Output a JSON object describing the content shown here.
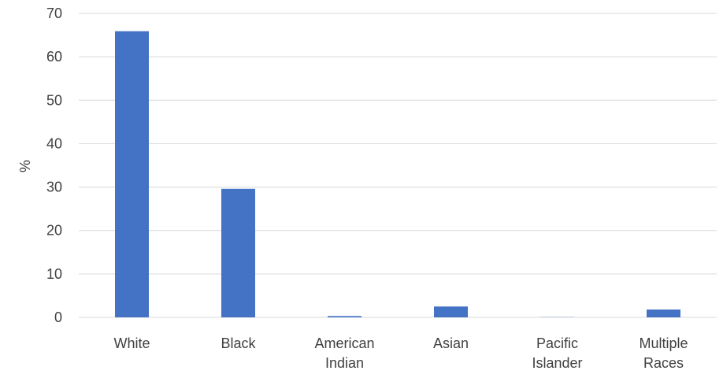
{
  "chart_data": {
    "type": "bar",
    "title": "",
    "xlabel": "",
    "ylabel": "%",
    "categories": [
      [
        "White"
      ],
      [
        "Black"
      ],
      [
        "American",
        "Indian"
      ],
      [
        "Asian"
      ],
      [
        "Pacific",
        "Islander"
      ],
      [
        "Multiple",
        "Races"
      ]
    ],
    "values": [
      65.9,
      29.6,
      0.3,
      2.5,
      0.05,
      1.8
    ],
    "ylim": [
      0,
      70
    ],
    "yticks": [
      "0",
      "10",
      "20",
      "30",
      "40",
      "50",
      "60",
      "70"
    ],
    "grid": true,
    "legend": "none",
    "colors": {
      "bar": "#4472C4",
      "grid": "#D9D9D9",
      "text": "#404040"
    }
  }
}
